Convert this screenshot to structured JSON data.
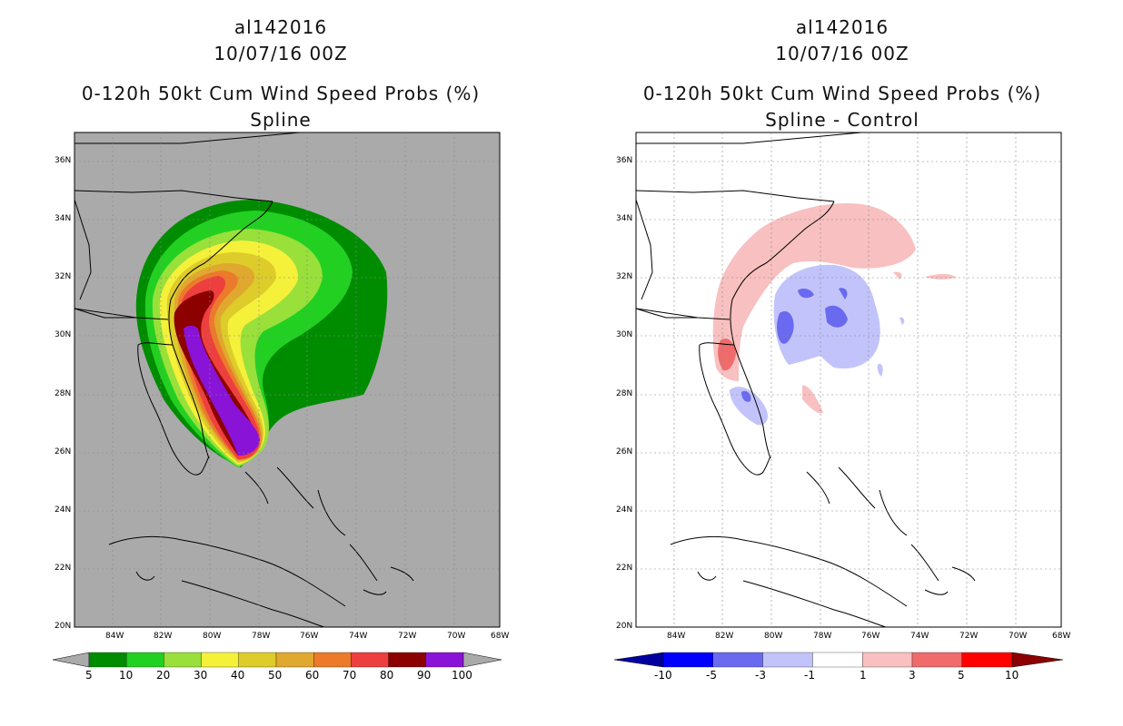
{
  "left_panel": {
    "title_storm": "al142016",
    "title_time": "10/07/16 00Z",
    "title_product": "0-120h 50kt Cum Wind Speed Probs (%)",
    "title_method": "Spline",
    "background_color": "#aaaaaa",
    "colorbar": {
      "labels": [
        "5",
        "10",
        "20",
        "30",
        "40",
        "50",
        "60",
        "70",
        "80",
        "90",
        "100"
      ],
      "colors": [
        "#008c00",
        "#22d022",
        "#99e03a",
        "#f5f03a",
        "#ddcc2a",
        "#e0a82e",
        "#ec7a2a",
        "#ee3f3f",
        "#8c0000",
        "#8a13d8"
      ]
    }
  },
  "right_panel": {
    "title_storm": "al142016",
    "title_time": "10/07/16 00Z",
    "title_product": "0-120h 50kt Cum Wind Speed Probs (%)",
    "title_method": "Spline - Control",
    "background_color": "#ffffff",
    "colorbar": {
      "labels": [
        "-10",
        "-5",
        "-3",
        "-1",
        "1",
        "3",
        "5",
        "10"
      ],
      "colors": [
        "#0000a0",
        "#0000ff",
        "#6a6af0",
        "#c3c3fb",
        "#ffffff",
        "#f8c0c0",
        "#f06b6b",
        "#ff0000",
        "#8c0000"
      ]
    }
  },
  "axes": {
    "lat_labels": [
      "36N",
      "34N",
      "32N",
      "30N",
      "28N",
      "26N",
      "24N",
      "22N",
      "20N"
    ],
    "lon_labels": [
      "84W",
      "82W",
      "80W",
      "78W",
      "76W",
      "74W",
      "72W",
      "70W",
      "68W"
    ]
  }
}
